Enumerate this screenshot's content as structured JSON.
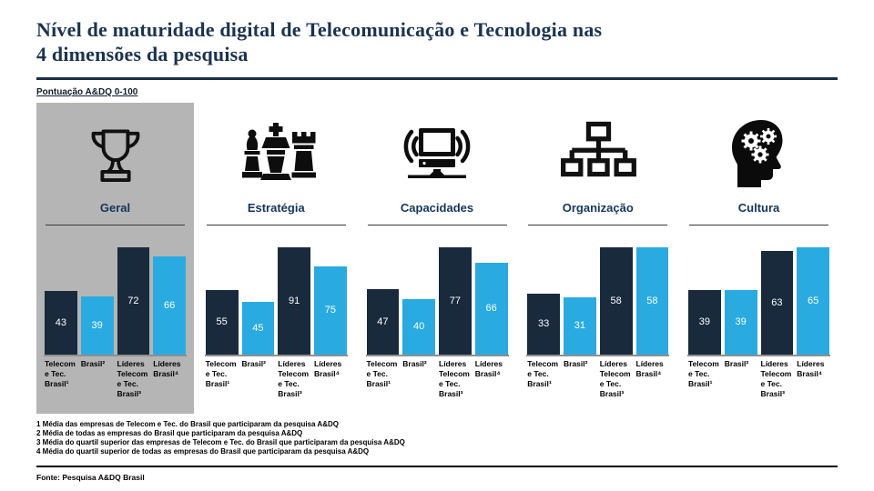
{
  "header": {
    "title_line1": "Nível de maturidade digital de Telecomunicação e Tecnologia nas",
    "title_line2": "4 dimensões da pesquisa",
    "subtitle": "Pontuação A&DQ 0-100"
  },
  "colors": {
    "bar_dark": "#192a3d",
    "bar_light": "#29abe2",
    "title_navy": "#1b3350",
    "highlight_panel_gray": "#b5b5b5"
  },
  "chart_data": {
    "type": "bar",
    "title": "Nível de maturidade digital de Telecomunicação e Tecnologia nas 4 dimensões da pesquisa",
    "subtitle": "Pontuação A&DQ 0-100",
    "ylim": [
      0,
      100
    ],
    "grid": false,
    "legend": "none",
    "value_labels": "inside-white",
    "categories": [
      "Telecom e Tec. Brasil¹",
      "Brasil²",
      "Líderes Telecom e Tec. Brasil³",
      "Líderes Brasil⁴"
    ],
    "bar_palette": [
      "dark",
      "light",
      "dark",
      "light"
    ],
    "groups": [
      {
        "label": "Geral",
        "icon": "trophy-icon",
        "highlight": true,
        "values": [
          43,
          39,
          72,
          66
        ]
      },
      {
        "label": "Estratégia",
        "icon": "chess-pieces-icon",
        "highlight": false,
        "values": [
          55,
          45,
          91,
          75
        ]
      },
      {
        "label": "Capacidades",
        "icon": "connected-computer-icon",
        "highlight": false,
        "values": [
          47,
          40,
          77,
          66
        ]
      },
      {
        "label": "Organização",
        "icon": "org-chart-icon",
        "highlight": false,
        "values": [
          33,
          31,
          58,
          58
        ]
      },
      {
        "label": "Cultura",
        "icon": "head-gears-icon",
        "highlight": false,
        "values": [
          39,
          39,
          63,
          65
        ]
      }
    ]
  },
  "footnotes": [
    "1 Média das empresas de Telecom e Tec. do Brasil que participaram da pesquisa A&DQ",
    "2 Média de todas as empresas do Brasil que participaram da pesquisa A&DQ",
    "3 Média do quartil superior das empresas de Telecom e Tec. do Brasil que participaram da pesquisa A&DQ",
    "4 Média do quartil superior de todas as empresas do Brasil que participaram da pesquisa A&DQ"
  ],
  "source": "Fonte: Pesquisa A&DQ Brasil"
}
